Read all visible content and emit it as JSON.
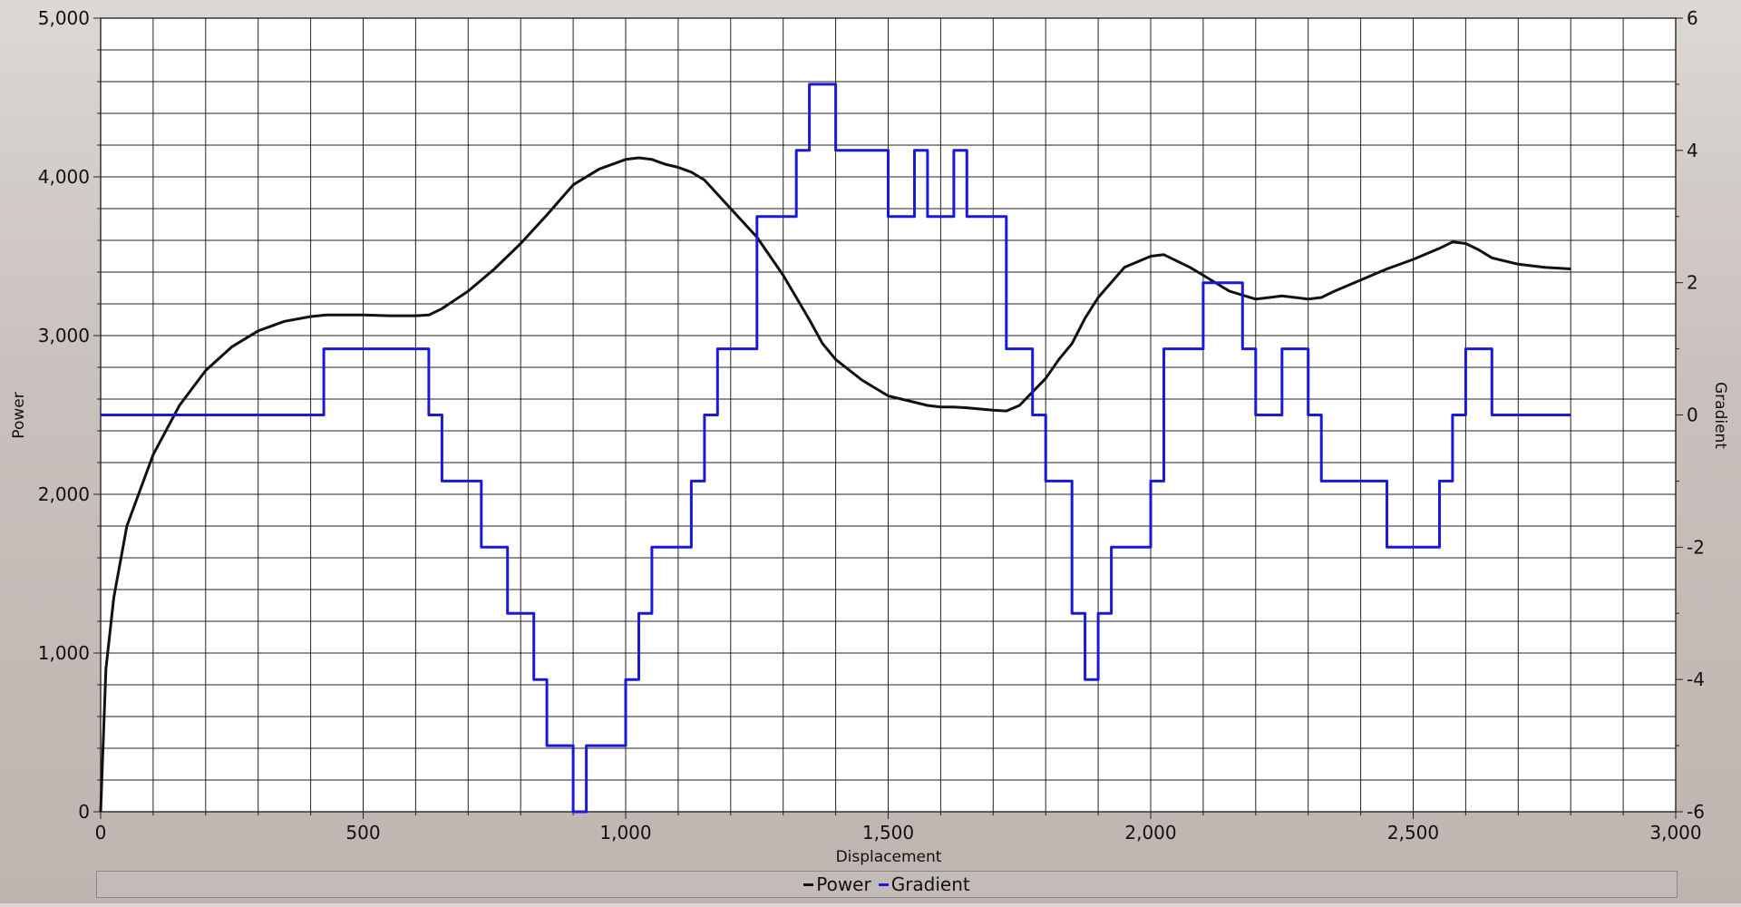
{
  "chart_data": {
    "type": "line",
    "title": "",
    "xlabel": "Displacement",
    "ylabel": "Power",
    "y2label": "Gradient",
    "xlim": [
      0,
      3000
    ],
    "ylim": [
      0,
      5000
    ],
    "y2lim": [
      -6,
      6
    ],
    "grid": true,
    "legend_position": "bottom",
    "x_ticks": [
      "0",
      "500",
      "1,000",
      "1,500",
      "2,000",
      "2,500",
      "3,000"
    ],
    "x_tick_values": [
      0,
      500,
      1000,
      1500,
      2000,
      2500,
      3000
    ],
    "y_ticks": [
      "0",
      "1,000",
      "2,000",
      "3,000",
      "4,000",
      "5,000"
    ],
    "y_tick_values": [
      0,
      1000,
      2000,
      3000,
      4000,
      5000
    ],
    "y2_ticks": [
      "-6",
      "-4",
      "-2",
      "0",
      "2",
      "4",
      "6"
    ],
    "y2_tick_values": [
      -6,
      -4,
      -2,
      0,
      2,
      4,
      6
    ],
    "series": [
      {
        "name": "Power",
        "axis": "left",
        "color": "#111111",
        "step": false,
        "x": [
          0,
          10,
          25,
          50,
          100,
          150,
          200,
          250,
          300,
          350,
          400,
          430,
          500,
          550,
          600,
          625,
          650,
          700,
          750,
          800,
          850,
          900,
          950,
          1000,
          1025,
          1050,
          1075,
          1100,
          1125,
          1150,
          1200,
          1250,
          1300,
          1350,
          1375,
          1400,
          1450,
          1500,
          1550,
          1575,
          1600,
          1625,
          1650,
          1700,
          1725,
          1750,
          1800,
          1825,
          1850,
          1875,
          1900,
          1950,
          2000,
          2025,
          2050,
          2075,
          2100,
          2150,
          2200,
          2250,
          2300,
          2325,
          2350,
          2400,
          2450,
          2500,
          2550,
          2575,
          2600,
          2625,
          2650,
          2700,
          2750,
          2800
        ],
        "y": [
          0,
          900,
          1350,
          1800,
          2250,
          2560,
          2780,
          2930,
          3030,
          3090,
          3120,
          3130,
          3130,
          3125,
          3125,
          3130,
          3170,
          3280,
          3420,
          3580,
          3760,
          3950,
          4050,
          4110,
          4120,
          4110,
          4080,
          4060,
          4030,
          3980,
          3800,
          3620,
          3380,
          3100,
          2950,
          2850,
          2720,
          2620,
          2580,
          2560,
          2550,
          2550,
          2545,
          2530,
          2525,
          2560,
          2730,
          2850,
          2950,
          3110,
          3240,
          3430,
          3500,
          3510,
          3470,
          3430,
          3380,
          3280,
          3230,
          3250,
          3230,
          3240,
          3280,
          3350,
          3420,
          3480,
          3550,
          3590,
          3580,
          3540,
          3490,
          3450,
          3430,
          3420
        ]
      },
      {
        "name": "Gradient",
        "axis": "right",
        "color": "#1a1ad6",
        "step": true,
        "x": [
          0,
          425,
          625,
          650,
          725,
          775,
          825,
          850,
          900,
          925,
          1000,
          1025,
          1050,
          1125,
          1150,
          1175,
          1250,
          1325,
          1350,
          1400,
          1500,
          1550,
          1575,
          1625,
          1650,
          1725,
          1775,
          1800,
          1850,
          1875,
          1900,
          1925,
          2000,
          2025,
          2100,
          2175,
          2200,
          2250,
          2300,
          2325,
          2450,
          2550,
          2575,
          2600,
          2650,
          2800
        ],
        "y": [
          0,
          1,
          0,
          -1,
          -2,
          -3,
          -4,
          -5,
          -6,
          -5,
          -4,
          -3,
          -2,
          -1,
          0,
          1,
          3,
          4,
          5,
          4,
          3,
          4,
          3,
          4,
          3,
          1,
          0,
          -1,
          -3,
          -4,
          -3,
          -2,
          -1,
          1,
          2,
          1,
          0,
          1,
          0,
          -1,
          -2,
          -1,
          0,
          1,
          0,
          0
        ]
      }
    ]
  }
}
